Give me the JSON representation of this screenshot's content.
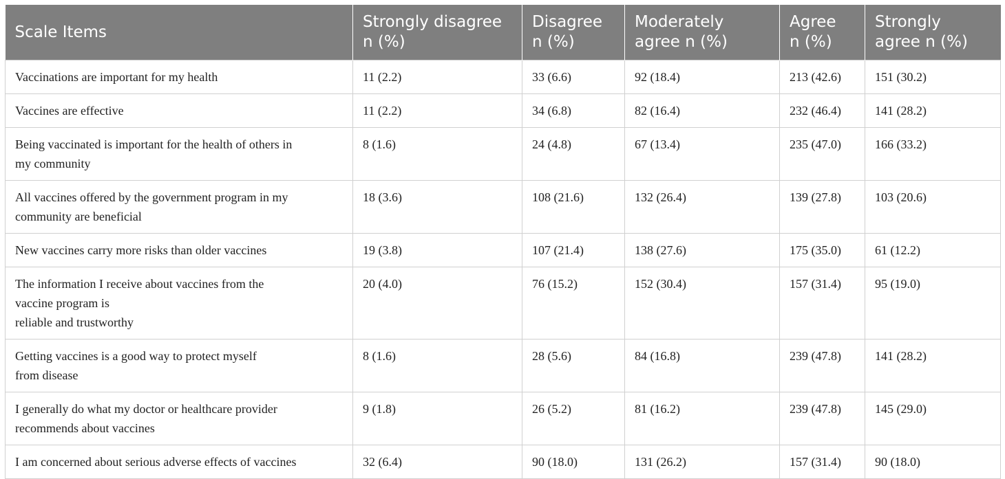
{
  "table": {
    "headers": [
      "Scale Items",
      "Strongly disagree\nn (%)",
      "Disagree\nn (%)",
      "Moderately\nagree n (%)",
      "Agree\nn (%)",
      "Strongly\nagree n (%)"
    ],
    "rows": [
      [
        "Vaccinations are important for my health",
        "11 (2.2)",
        "33 (6.6)",
        "92 (18.4)",
        "213 (42.6)",
        "151 (30.2)"
      ],
      [
        "Vaccines are effective",
        "11 (2.2)",
        "34 (6.8)",
        "82 (16.4)",
        "232 (46.4)",
        "141 (28.2)"
      ],
      [
        "Being vaccinated is important for the health of others in\nmy community",
        "8 (1.6)",
        "24 (4.8)",
        "67 (13.4)",
        "235 (47.0)",
        "166 (33.2)"
      ],
      [
        "All vaccines offered by the government program in my\ncommunity are beneficial",
        "18 (3.6)",
        "108 (21.6)",
        "132 (26.4)",
        "139 (27.8)",
        "103 (20.6)"
      ],
      [
        "New vaccines carry more risks than older vaccines",
        "19 (3.8)",
        "107 (21.4)",
        "138 (27.6)",
        "175 (35.0)",
        "61 (12.2)"
      ],
      [
        "The information I receive about vaccines from the\nvaccine program is\nreliable and trustworthy",
        "20 (4.0)",
        "76 (15.2)",
        "152 (30.4)",
        "157 (31.4)",
        "95 (19.0)"
      ],
      [
        "Getting vaccines is a good way to protect myself\nfrom disease",
        "8 (1.6)",
        "28 (5.6)",
        "84 (16.8)",
        "239 (47.8)",
        "141 (28.2)"
      ],
      [
        "I generally do what my doctor or healthcare provider\nrecommends about vaccines",
        "9 (1.8)",
        "26 (5.2)",
        "81 (16.2)",
        "239 (47.8)",
        "145 (29.0)"
      ],
      [
        "I am concerned about serious adverse effects of vaccines",
        "32 (6.4)",
        "90 (18.0)",
        "131 (26.2)",
        "157 (31.4)",
        "90 (18.0)"
      ]
    ]
  }
}
